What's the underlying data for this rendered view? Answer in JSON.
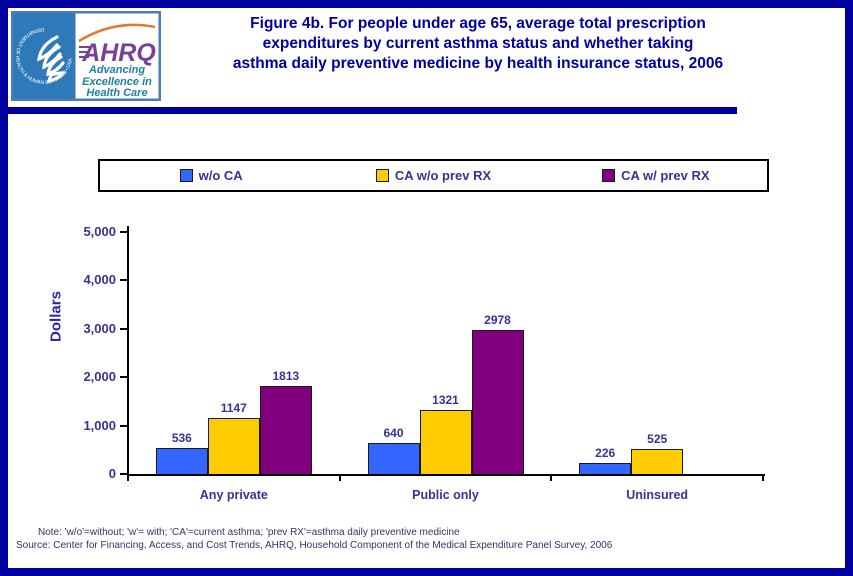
{
  "header": {
    "title": "Figure 4b. For people under age 65, average total prescription expenditures by current asthma status and whether taking asthma daily preventive medicine by health insurance status, 2006",
    "title_lines": [
      "Figure 4b. For people under age 65, average total prescription",
      "expenditures by current asthma status and whether taking",
      "asthma daily preventive medicine by health insurance status, 2006"
    ],
    "logo": {
      "ahrq_text": "AHRQ",
      "ahrq_tagline_lines": [
        "Advancing",
        "Excellence in",
        "Health Care"
      ],
      "hhs_ring_text": "DEPARTMENT OF HEALTH & HUMAN SERVICES • USA"
    }
  },
  "colors": {
    "border_blue": "#0000A0",
    "title_blue": "#0000A0",
    "label_blue": "#333399",
    "footnote_blue": "#333366",
    "bar_blue": "#3366FF",
    "bar_yellow": "#FFCC00",
    "bar_purple": "#800080"
  },
  "chart_data": {
    "type": "bar",
    "title": "",
    "xlabel": "",
    "ylabel": "Dollars",
    "ylim": [
      0,
      5000
    ],
    "ytick_interval": 1000,
    "ytick_labels": [
      "0",
      "1,000",
      "2,000",
      "3,000",
      "4,000",
      "5,000"
    ],
    "categories": [
      "Any private",
      "Public only",
      "Uninsured"
    ],
    "series": [
      {
        "name": "w/o CA",
        "color": "#3366FF",
        "values": [
          536,
          640,
          226
        ]
      },
      {
        "name": "CA w/o prev RX",
        "color": "#FFCC00",
        "values": [
          1147,
          1321,
          525
        ]
      },
      {
        "name": "CA w/ prev RX",
        "color": "#800080",
        "values": [
          1813,
          2978,
          null
        ]
      }
    ],
    "legend_position": "top",
    "grid": false
  },
  "footnotes": {
    "note": "Note: 'w/o'=without; 'w'= with; 'CA'=current asthma; 'prev RX'=asthma daily preventive medicine",
    "source": "Source: Center for Financing, Access, and Cost Trends, AHRQ, Household Component of the Medical Expenditure Panel Survey, 2006"
  }
}
